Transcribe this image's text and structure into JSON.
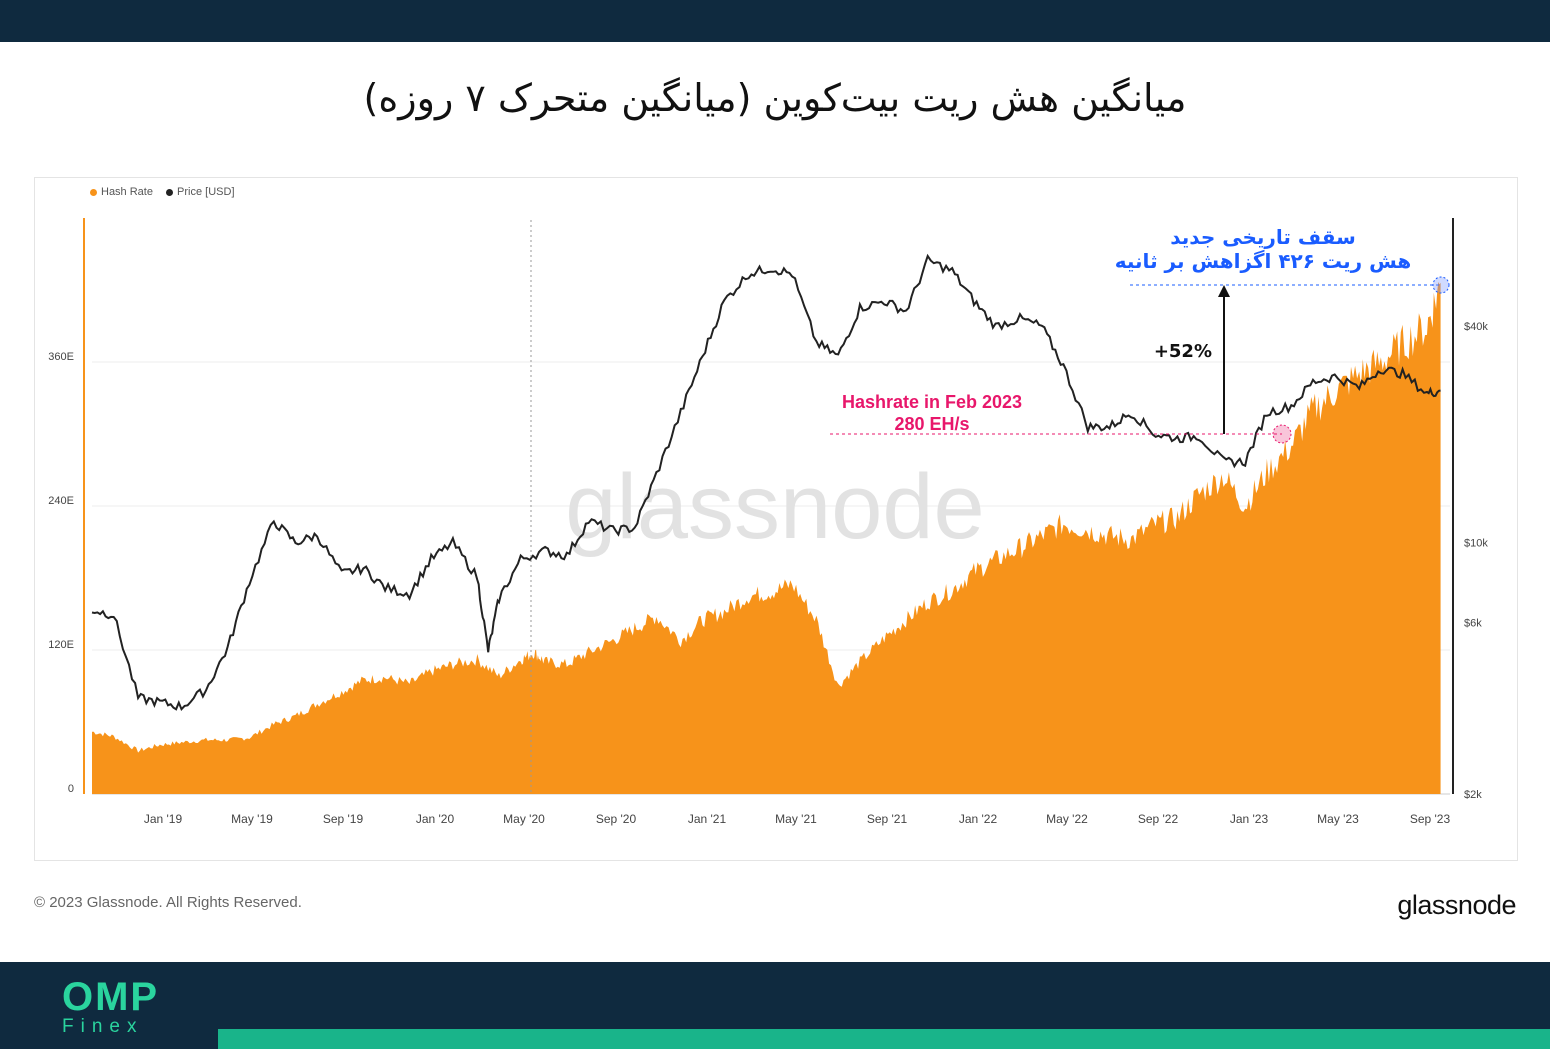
{
  "title": "میانگین هش ریت بیت‌کوین (میانگین متحرک ۷ روزه)",
  "legend": {
    "hash_rate": "Hash Rate",
    "price": "Price [USD]"
  },
  "watermark": "glassnode",
  "annotations": {
    "ath_line1": "سقف تاریخی جدید",
    "ath_line2": "هش ریت ۴۲۶ اگزاهش بر ثانیه",
    "change": "+52%",
    "feb_line1": "Hashrate in Feb 2023",
    "feb_line2": "280 EH/s"
  },
  "footer": {
    "copyright": "© 2023 Glassnode. All Rights Reserved.",
    "logo": "glassnode"
  },
  "brand": {
    "omp": "OMP",
    "finex": "Finex"
  },
  "colors": {
    "hash": "#f7931a",
    "price": "#222222",
    "annotation_blue": "#1a5cff",
    "annotation_pink": "#e8176b",
    "band": "#0f2a3f",
    "brand_green": "#2ad49e"
  },
  "chart_data": {
    "type": "area",
    "x_tick_labels": [
      "Jan '19",
      "May '19",
      "Sep '19",
      "Jan '20",
      "May '20",
      "Sep '20",
      "Jan '21",
      "May '21",
      "Sep '21",
      "Jan '22",
      "May '22",
      "Sep '22",
      "Jan '23",
      "May '23",
      "Sep '23"
    ],
    "y_left_ticks": [
      "0",
      "120E",
      "240E",
      "360E"
    ],
    "y_left_values": [
      0,
      120,
      240,
      360
    ],
    "y_right_ticks": [
      "$2k",
      "$6k",
      "$10k",
      "$40k"
    ],
    "y_right_values": [
      2000,
      6000,
      10000,
      40000
    ],
    "y_right_scale": "log",
    "x_range": [
      2018.75,
      2023.74
    ],
    "ylim_left": [
      0,
      480
    ],
    "series": [
      {
        "name": "Hash Rate",
        "axis": "left",
        "points": [
          [
            2018.75,
            52
          ],
          [
            2018.83,
            48
          ],
          [
            2018.92,
            36
          ],
          [
            2019.0,
            41
          ],
          [
            2019.08,
            43
          ],
          [
            2019.17,
            45
          ],
          [
            2019.25,
            45
          ],
          [
            2019.33,
            47
          ],
          [
            2019.42,
            58
          ],
          [
            2019.5,
            65
          ],
          [
            2019.58,
            75
          ],
          [
            2019.67,
            85
          ],
          [
            2019.75,
            95
          ],
          [
            2019.83,
            97
          ],
          [
            2019.92,
            92
          ],
          [
            2020.0,
            102
          ],
          [
            2020.08,
            108
          ],
          [
            2020.17,
            112
          ],
          [
            2020.25,
            98
          ],
          [
            2020.33,
            112
          ],
          [
            2020.38,
            118
          ],
          [
            2020.42,
            110
          ],
          [
            2020.5,
            108
          ],
          [
            2020.58,
            118
          ],
          [
            2020.67,
            128
          ],
          [
            2020.75,
            138
          ],
          [
            2020.83,
            148
          ],
          [
            2020.92,
            128
          ],
          [
            2021.0,
            145
          ],
          [
            2021.08,
            152
          ],
          [
            2021.17,
            165
          ],
          [
            2021.25,
            168
          ],
          [
            2021.33,
            175
          ],
          [
            2021.42,
            145
          ],
          [
            2021.5,
            90
          ],
          [
            2021.58,
            110
          ],
          [
            2021.67,
            130
          ],
          [
            2021.75,
            145
          ],
          [
            2021.83,
            160
          ],
          [
            2021.92,
            170
          ],
          [
            2022.0,
            185
          ],
          [
            2022.08,
            195
          ],
          [
            2022.17,
            205
          ],
          [
            2022.25,
            215
          ],
          [
            2022.33,
            225
          ],
          [
            2022.42,
            220
          ],
          [
            2022.5,
            215
          ],
          [
            2022.58,
            212
          ],
          [
            2022.67,
            225
          ],
          [
            2022.75,
            230
          ],
          [
            2022.83,
            250
          ],
          [
            2022.92,
            265
          ],
          [
            2023.0,
            240
          ],
          [
            2023.08,
            268
          ],
          [
            2023.17,
            290
          ],
          [
            2023.25,
            320
          ],
          [
            2023.33,
            335
          ],
          [
            2023.42,
            350
          ],
          [
            2023.5,
            360
          ],
          [
            2023.58,
            375
          ],
          [
            2023.67,
            390
          ],
          [
            2023.72,
            426
          ]
        ]
      },
      {
        "name": "Price [USD]",
        "axis": "right",
        "points": [
          [
            2018.75,
            6500
          ],
          [
            2018.83,
            6300
          ],
          [
            2018.92,
            3700
          ],
          [
            2019.0,
            3600
          ],
          [
            2019.08,
            3500
          ],
          [
            2019.17,
            3900
          ],
          [
            2019.25,
            5100
          ],
          [
            2019.33,
            7800
          ],
          [
            2019.42,
            11500
          ],
          [
            2019.5,
            10000
          ],
          [
            2019.58,
            10500
          ],
          [
            2019.67,
            8200
          ],
          [
            2019.75,
            8500
          ],
          [
            2019.83,
            7500
          ],
          [
            2019.92,
            7200
          ],
          [
            2020.0,
            9000
          ],
          [
            2020.08,
            10000
          ],
          [
            2020.17,
            8000
          ],
          [
            2020.21,
            5000
          ],
          [
            2020.25,
            7000
          ],
          [
            2020.33,
            9000
          ],
          [
            2020.42,
            9500
          ],
          [
            2020.5,
            9200
          ],
          [
            2020.58,
            11500
          ],
          [
            2020.67,
            10800
          ],
          [
            2020.75,
            11000
          ],
          [
            2020.83,
            15500
          ],
          [
            2020.92,
            23000
          ],
          [
            2021.0,
            33000
          ],
          [
            2021.08,
            47000
          ],
          [
            2021.17,
            56000
          ],
          [
            2021.25,
            58000
          ],
          [
            2021.33,
            56000
          ],
          [
            2021.42,
            36000
          ],
          [
            2021.5,
            33000
          ],
          [
            2021.58,
            45000
          ],
          [
            2021.67,
            47000
          ],
          [
            2021.75,
            44000
          ],
          [
            2021.83,
            61000
          ],
          [
            2021.92,
            57000
          ],
          [
            2022.0,
            47000
          ],
          [
            2022.08,
            40000
          ],
          [
            2022.17,
            42000
          ],
          [
            2022.25,
            40000
          ],
          [
            2022.33,
            31000
          ],
          [
            2022.42,
            21000
          ],
          [
            2022.5,
            21000
          ],
          [
            2022.58,
            23000
          ],
          [
            2022.67,
            20000
          ],
          [
            2022.75,
            19500
          ],
          [
            2022.83,
            19800
          ],
          [
            2022.92,
            16800
          ],
          [
            2023.0,
            16800
          ],
          [
            2023.08,
            23000
          ],
          [
            2023.17,
            24000
          ],
          [
            2023.25,
            28000
          ],
          [
            2023.33,
            29000
          ],
          [
            2023.42,
            27000
          ],
          [
            2023.5,
            30500
          ],
          [
            2023.58,
            29500
          ],
          [
            2023.67,
            26000
          ],
          [
            2023.72,
            26500
          ]
        ]
      }
    ]
  }
}
